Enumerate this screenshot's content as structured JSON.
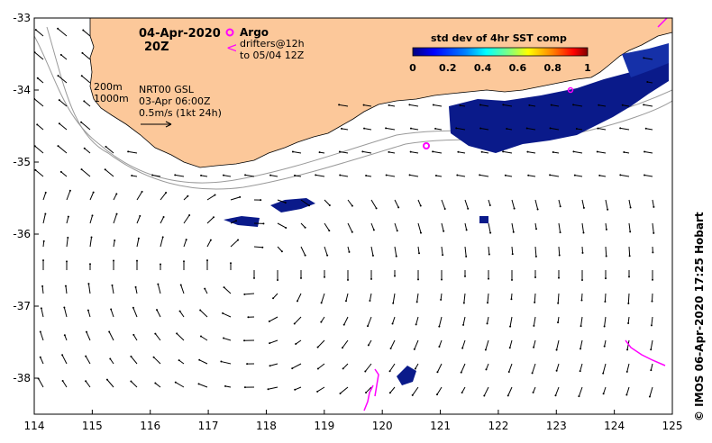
{
  "map": {
    "date": "04-Apr-2020",
    "time": "20Z",
    "argo_label": "Argo",
    "drifter_label_1": "drifters@12h",
    "drifter_label_2": "to 05/04 12Z",
    "isobath_200": "200m",
    "isobath_1000": "1000m",
    "product": "NRT00 GSL",
    "product_date": "03-Apr 06:00Z",
    "vector_scale": "0.5m/s (1kt 24h)",
    "credit": "© IMOS 06-Apr-2020 17:25 Hobart",
    "colors": {
      "land": "#fcc89a",
      "ocean": "#ffffff",
      "argo": "#ff00ff",
      "drifter": "#ff00ff",
      "isobath": "#9a9a9a",
      "sst_high_density": "#0a1a8a"
    }
  },
  "colorbar": {
    "title": "std dev of 4hr SST comp",
    "ticks": [
      "0",
      "0.2",
      "0.4",
      "0.6",
      "0.8",
      "1"
    ],
    "stops": [
      "#00007f",
      "#0000ff",
      "#0080ff",
      "#00ffff",
      "#80ff80",
      "#ffff00",
      "#ff8000",
      "#ff0000",
      "#7f0000"
    ]
  },
  "axes": {
    "lon_ticks": [
      "114",
      "115",
      "116",
      "117",
      "118",
      "119",
      "120",
      "121",
      "122",
      "123",
      "124",
      "125"
    ],
    "lat_ticks": [
      "-33",
      "-34",
      "-35",
      "-36",
      "-37",
      "-38"
    ],
    "xlim": [
      114,
      125
    ],
    "ylim": [
      -38.5,
      -33
    ]
  }
}
